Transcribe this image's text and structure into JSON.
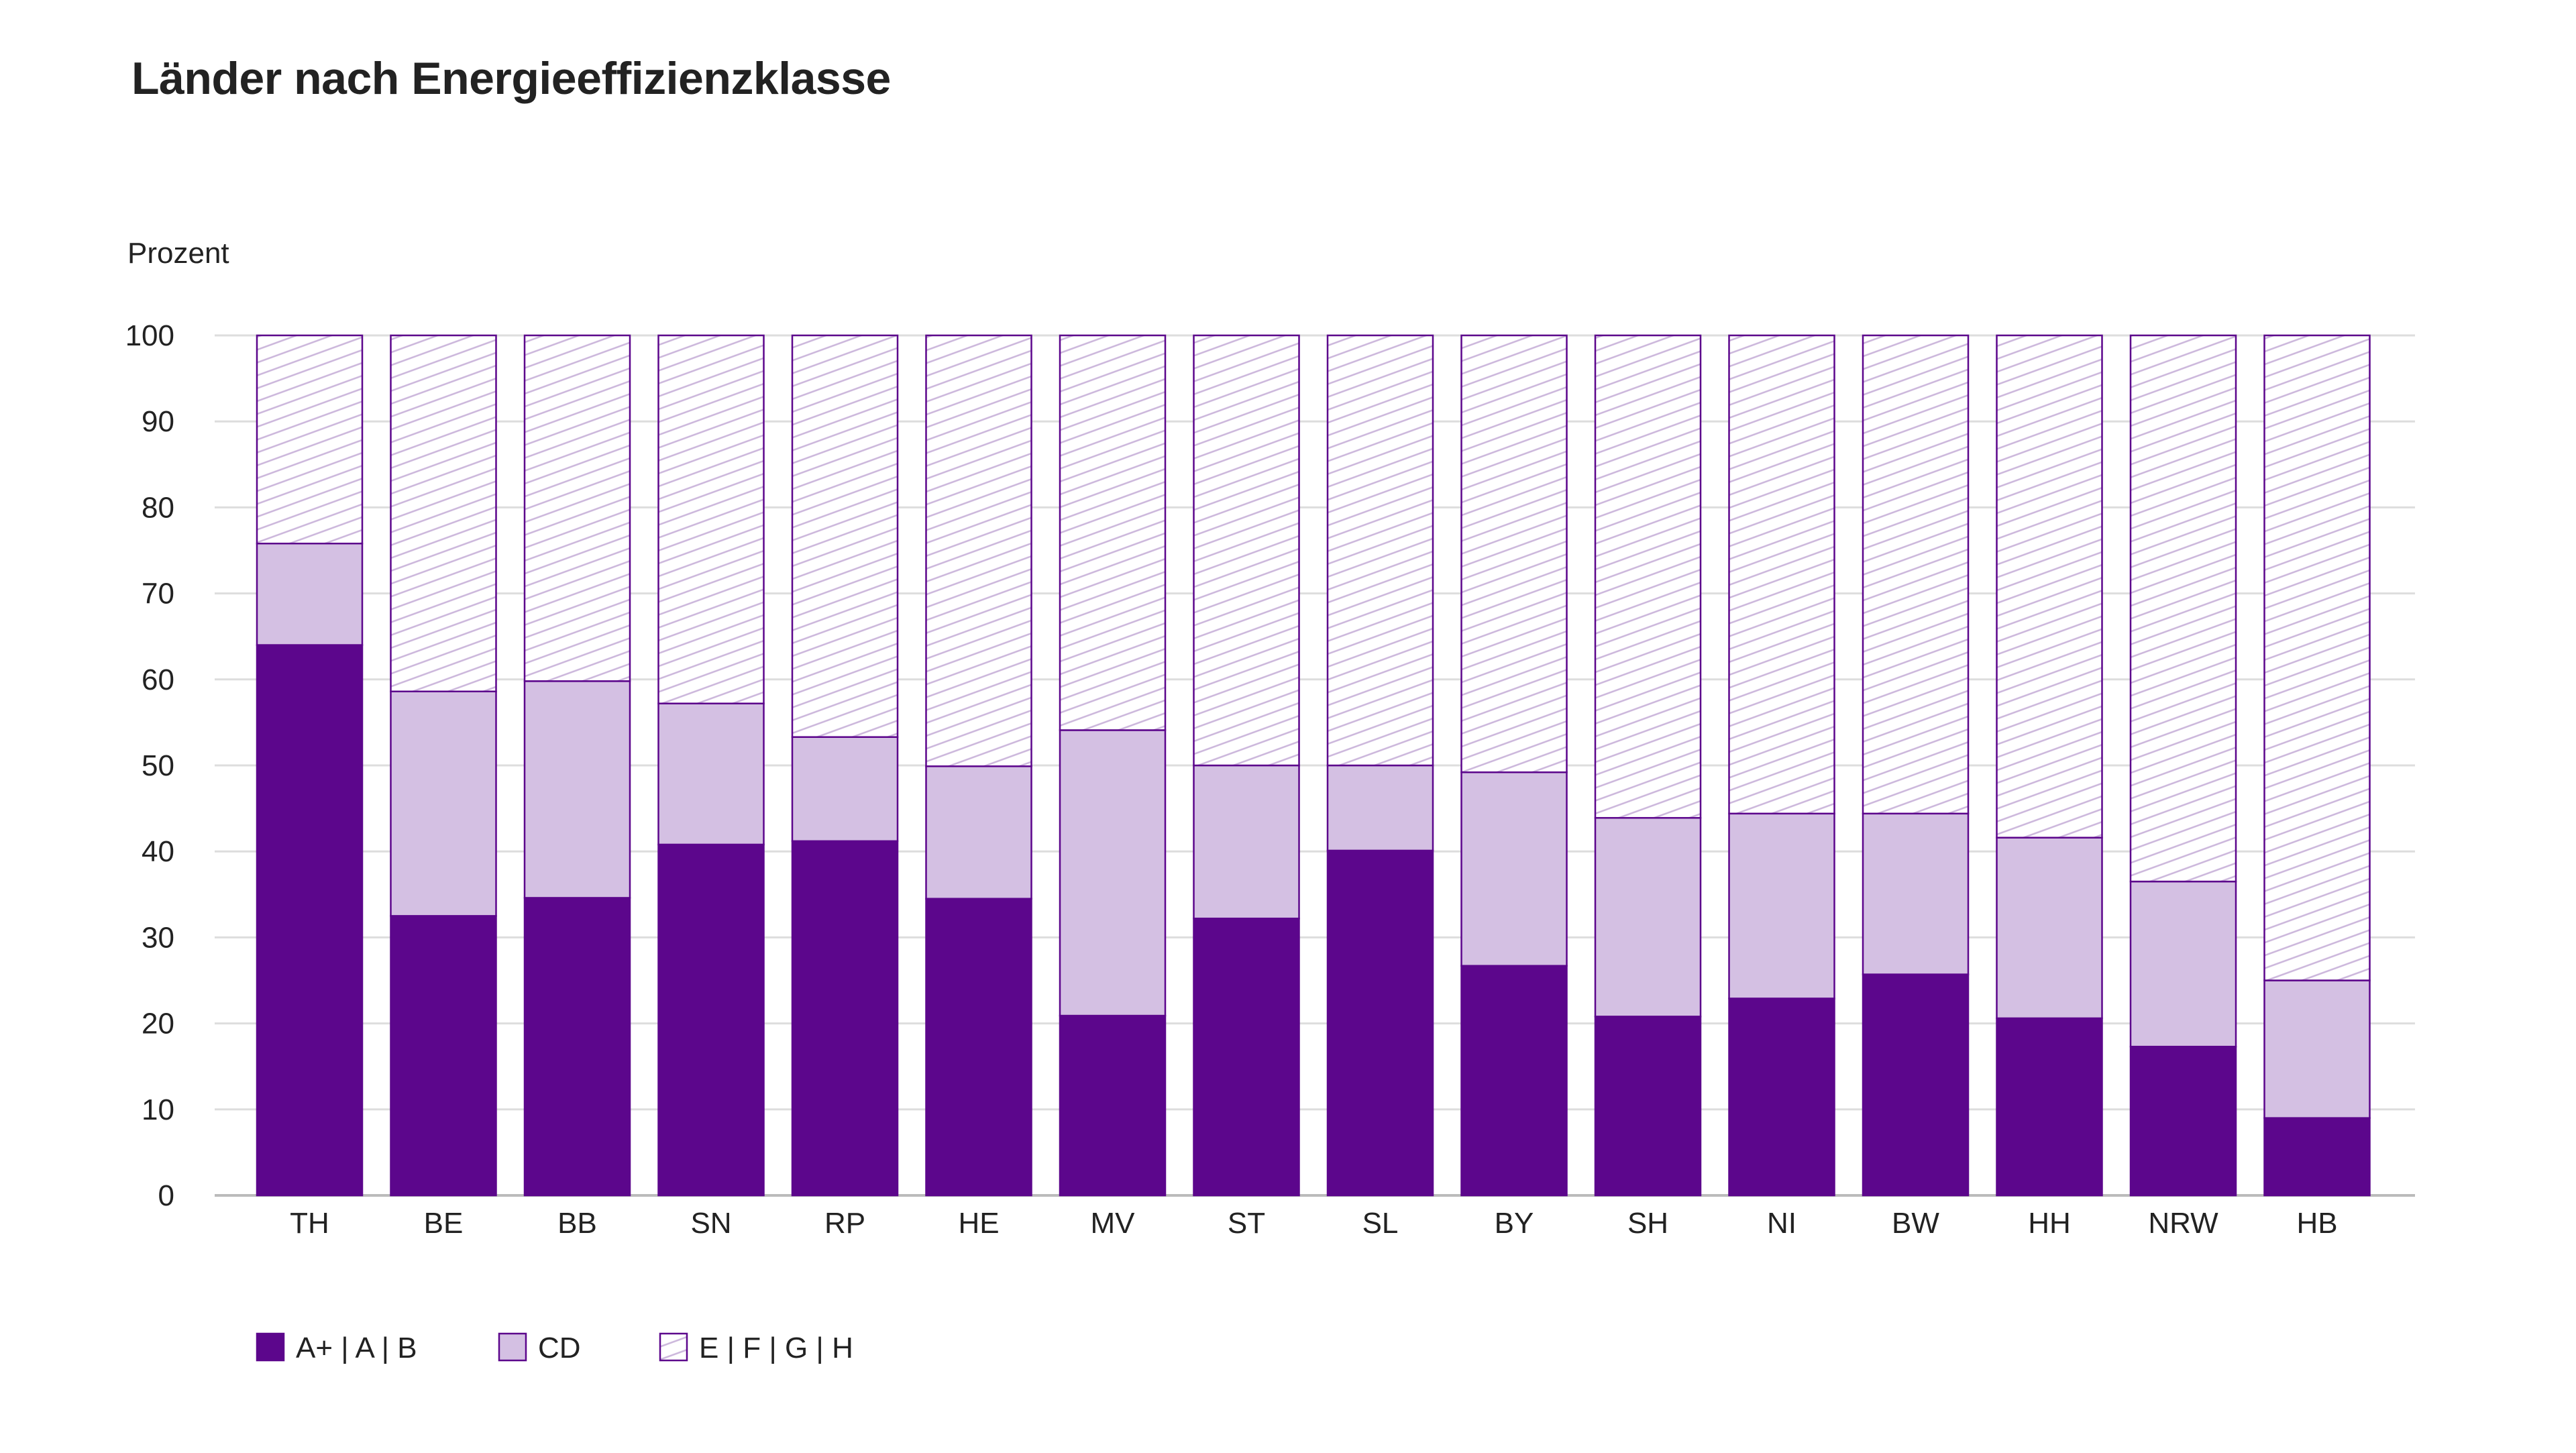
{
  "chart_data": {
    "type": "bar",
    "stacked": true,
    "title": "Länder nach Energieeffizienzklasse",
    "ylabel": "Prozent",
    "xlabel": "",
    "ylim": [
      0,
      100
    ],
    "yticks": [
      0,
      10,
      20,
      30,
      40,
      50,
      60,
      70,
      80,
      90,
      100
    ],
    "grid": true,
    "legend_position": "bottom-left",
    "categories": [
      "TH",
      "BE",
      "BB",
      "SN",
      "RP",
      "HE",
      "MV",
      "ST",
      "SL",
      "BY",
      "SH",
      "NI",
      "BW",
      "HH",
      "NRW",
      "HB"
    ],
    "series": [
      {
        "name": "A+ | A | B",
        "color": "#5c068c",
        "pattern": "solid",
        "values": [
          64,
          32.5,
          34.6,
          40.8,
          41.2,
          34.5,
          20.9,
          32.2,
          40.1,
          26.7,
          20.8,
          22.9,
          25.7,
          20.6,
          17.3,
          9
        ]
      },
      {
        "name": "CD",
        "color": "#d4c0e3",
        "pattern": "solid",
        "values": [
          11.8,
          26.1,
          25.2,
          16.4,
          12.1,
          15.4,
          33.2,
          17.8,
          9.9,
          22.5,
          23.1,
          21.5,
          18.7,
          21,
          19.2,
          16
        ]
      },
      {
        "name": "E | F | G | H",
        "color": "#ffffff",
        "pattern": "hatch",
        "values": [
          24.2,
          41.4,
          40.2,
          42.8,
          46.7,
          50.1,
          45.9,
          50,
          50,
          50.8,
          56.1,
          55.6,
          55.6,
          58.4,
          63.5,
          75
        ]
      }
    ]
  },
  "colors": {
    "dark_purple": "#5c068c",
    "light_purple": "#d4c0e3",
    "outline": "#5c068c",
    "hatch_line": "#cbb6db",
    "grid": "#dddddd",
    "axis": "#bbbbbb"
  }
}
